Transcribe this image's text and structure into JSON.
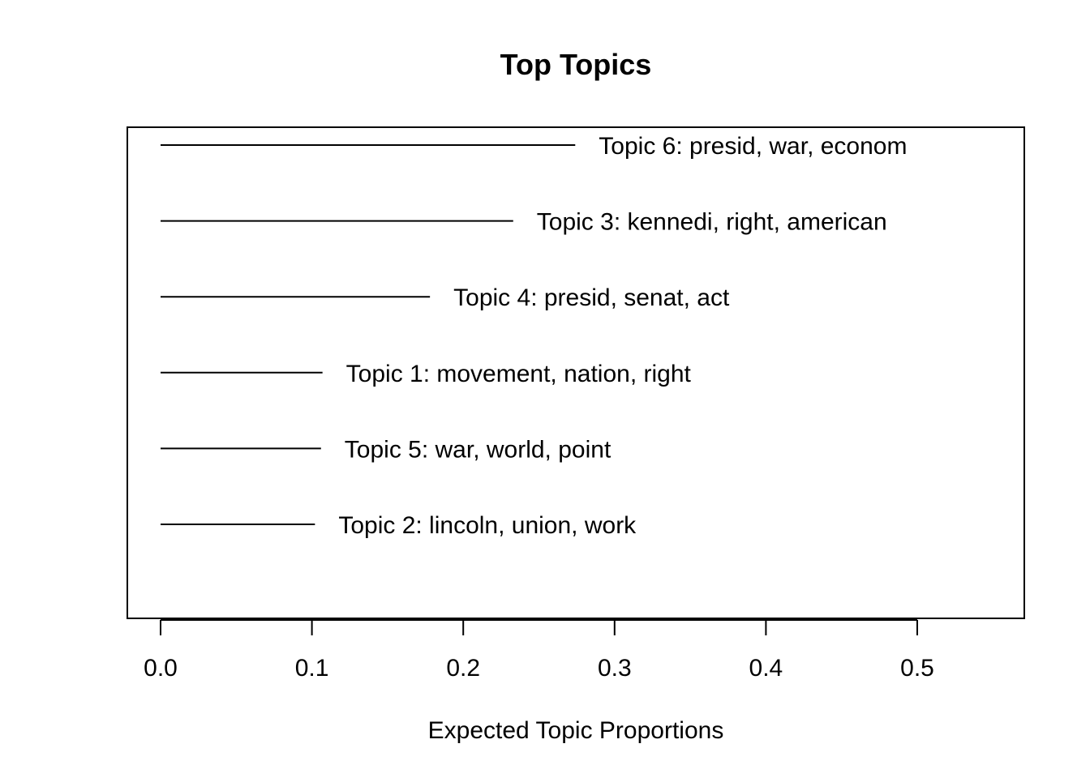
{
  "chart_data": {
    "type": "bar",
    "orientation": "horizontal",
    "title": "Top Topics",
    "xlabel": "Expected Topic Proportions",
    "ylabel": "",
    "xlim": [
      0,
      0.5
    ],
    "xticks": [
      0.0,
      0.1,
      0.2,
      0.3,
      0.4,
      0.5
    ],
    "xtick_labels": [
      "0.0",
      "0.1",
      "0.2",
      "0.3",
      "0.4",
      "0.5"
    ],
    "grid": false,
    "legend": "none",
    "bar_color": "#000000",
    "categories": [
      "Topic 6: presid, war, econom",
      "Topic 3: kennedi, right, american",
      "Topic 4: presid, senat, act",
      "Topic 1: movement, nation, right",
      "Topic 5: war, world, point",
      "Topic 2: lincoln, union, work"
    ],
    "values": [
      0.274,
      0.233,
      0.178,
      0.107,
      0.106,
      0.102
    ]
  }
}
